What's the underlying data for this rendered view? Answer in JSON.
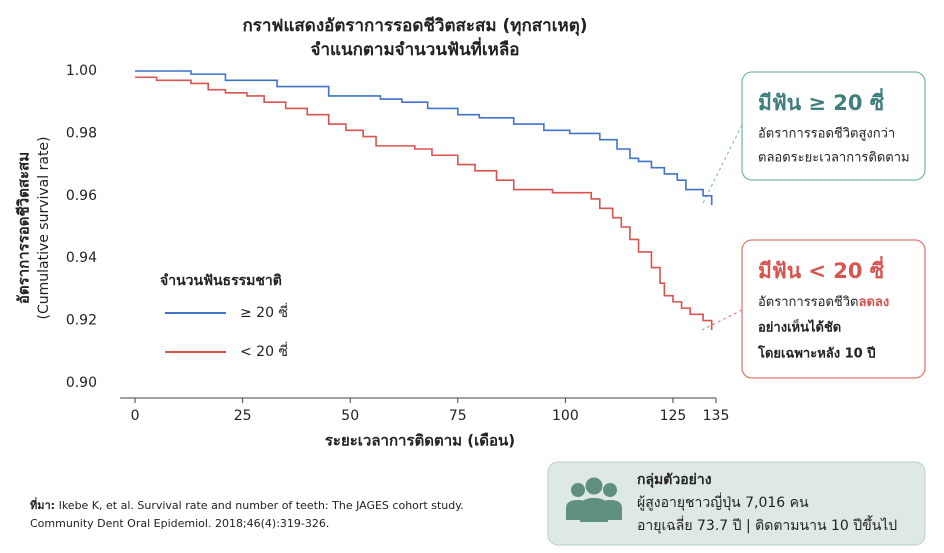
{
  "chart_data": {
    "type": "line",
    "step": true,
    "title": [
      "กราฟแสดงอัตราการรอดชีวิตสะสม (ทุกสาเหตุ)",
      "จำแนกตามจำนวนฟันที่เหลือ"
    ],
    "y_label": [
      "อัตราการรอดชีวิตสะสม",
      "(Cumulative survival rate)"
    ],
    "x_label": "ระยะเวลาการติดตาม (เดือน)",
    "legend_title": "จำนวนฟันธรรมชาติ",
    "xlim": [
      -3.5,
      135
    ],
    "xticks": [
      0,
      25,
      50,
      75,
      100,
      125,
      135
    ],
    "ylim": [
      0.9,
      1.0
    ],
    "yticks": [
      {
        "value": 1.0,
        "label": "1.00"
      },
      0.98,
      0.96,
      0.94,
      0.92,
      {
        "value": 0.9,
        "label": "0.90"
      }
    ],
    "series": [
      {
        "name": "≥ 20 ซี่",
        "color": "#3f74c9",
        "x": [
          0,
          13,
          21,
          33,
          45,
          57,
          62,
          68,
          75,
          80,
          88,
          95,
          101,
          108,
          112,
          115,
          117,
          120,
          123,
          126,
          128,
          132,
          134
        ],
        "values": [
          1.0,
          0.999,
          0.997,
          0.995,
          0.992,
          0.991,
          0.99,
          0.988,
          0.986,
          0.985,
          0.983,
          0.981,
          0.98,
          0.978,
          0.975,
          0.972,
          0.971,
          0.969,
          0.967,
          0.965,
          0.962,
          0.96,
          0.957
        ]
      },
      {
        "name": "< 20 ซี่",
        "color": "#d9534f",
        "x": [
          0,
          5,
          13,
          17,
          21,
          26,
          30,
          35,
          40,
          45,
          49,
          53,
          56,
          65,
          69,
          75,
          79,
          84,
          88,
          97,
          103,
          106,
          108,
          111,
          113,
          115,
          117,
          120,
          122,
          123,
          125,
          127,
          129,
          132,
          134
        ],
        "values": [
          0.998,
          0.997,
          0.996,
          0.994,
          0.993,
          0.992,
          0.99,
          0.988,
          0.986,
          0.983,
          0.981,
          0.979,
          0.976,
          0.975,
          0.973,
          0.97,
          0.968,
          0.965,
          0.962,
          0.961,
          0.961,
          0.959,
          0.956,
          0.953,
          0.95,
          0.946,
          0.942,
          0.937,
          0.932,
          0.928,
          0.926,
          0.924,
          0.922,
          0.92,
          0.917
        ]
      }
    ],
    "annotations": {
      "high": {
        "title": "มีฟัน ≥ 20 ซี่",
        "lines": [
          "อัตราการรอดชีวิตสูงกว่า",
          "ตลอดระยะเวลาการติดตาม"
        ]
      },
      "low": {
        "title": "มีฟัน < 20 ซี่",
        "line1": [
          "อัตราการรอดชีวิต",
          "ลดลง"
        ],
        "lines": [
          "อย่างเห็นได้ชัด",
          "โดยเฉพาะหลัง 10 ปี"
        ]
      },
      "source": {
        "label": "ที่มา:",
        "lines": [
          " Ikebe K, et al. Survival rate and number of teeth: The JAGES cohort study.",
          "Community Dent Oral Epidemiol. 2018;46(4):319-326."
        ]
      },
      "sample": {
        "title": "กลุ่มตัวอย่าง",
        "lines": [
          "ผู้สูงอายุชาวญี่ปุ่น 7,016 คน",
          "อายุเฉลี่ย 73.7 ปี | ติดตามนาน 10 ปีขึ้นไป"
        ]
      }
    }
  }
}
